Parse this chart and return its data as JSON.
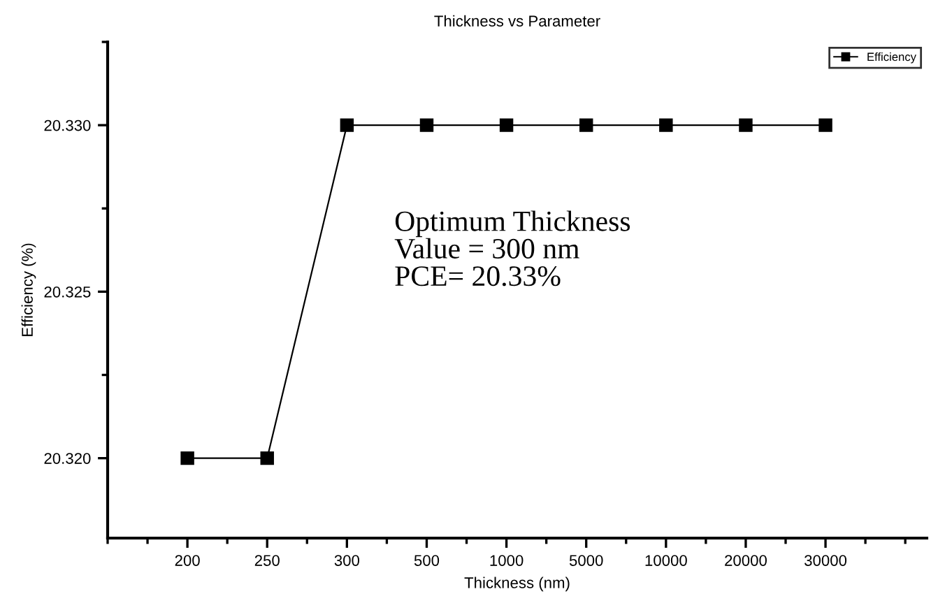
{
  "chart_data": {
    "type": "line",
    "title": "Thickness vs Parameter",
    "xlabel": "Thickness (nm)",
    "ylabel": "Efficiency (%)",
    "categories": [
      "200",
      "250",
      "300",
      "500",
      "1000",
      "5000",
      "10000",
      "20000",
      "30000"
    ],
    "series": [
      {
        "name": "Efficiency",
        "color": "#000000",
        "values": [
          20.32,
          20.32,
          20.33,
          20.33,
          20.33,
          20.33,
          20.33,
          20.33,
          20.33
        ]
      }
    ],
    "ylim": [
      20.3176,
      20.3325
    ],
    "yticks": [
      {
        "value": 20.32,
        "label": "20.320"
      },
      {
        "value": 20.325,
        "label": "20.325"
      },
      {
        "value": 20.33,
        "label": "20.330"
      }
    ],
    "annotations": [
      "Optimum Thickness\nValue = 300 nm\nPCE= 20.33%"
    ],
    "marker": "square",
    "line_style": "solid",
    "legend": "top right",
    "grid": false
  }
}
